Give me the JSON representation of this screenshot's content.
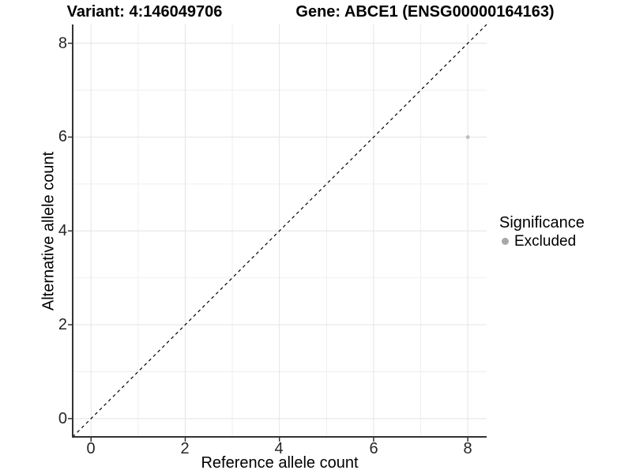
{
  "titles": {
    "variant_title": "Variant: 4:146049706",
    "gene_title": "Gene: ABCE1 (ENSG00000164163)"
  },
  "axes": {
    "x": {
      "label": "Reference allele count",
      "ticks": [
        "0",
        "2",
        "4",
        "6",
        "8"
      ]
    },
    "y": {
      "label": "Alternative allele count",
      "ticks": [
        "0",
        "2",
        "4",
        "6",
        "8"
      ]
    }
  },
  "legend": {
    "title": "Significance",
    "items": [
      {
        "label": "Excluded",
        "marker_color": "#a8a8a8"
      }
    ]
  },
  "chart_data": {
    "type": "scatter",
    "title": "Variant: 4:146049706 / Gene: ABCE1 (ENSG00000164163)",
    "xlabel": "Reference allele count",
    "ylabel": "Alternative allele count",
    "xlim": [
      -0.39,
      8.4
    ],
    "ylim": [
      -0.39,
      8.4
    ],
    "x_major_ticks": [
      0,
      2,
      4,
      6,
      8
    ],
    "x_minor_ticks": [
      1,
      3,
      5,
      7
    ],
    "y_major_ticks": [
      0,
      2,
      4,
      6,
      8
    ],
    "y_minor_ticks": [
      1,
      3,
      5,
      7
    ],
    "grid": "major and minor gridlines, light gray on white",
    "legend_position": "right",
    "series": [
      {
        "name": "Excluded",
        "marker": "circle",
        "color": "#bdbdbd",
        "points": [
          {
            "x": 8,
            "y": 6
          }
        ]
      }
    ],
    "reference_line": {
      "type": "identity",
      "slope": 1,
      "intercept": 0,
      "style": "dashed",
      "color": "#000000"
    }
  },
  "colors": {
    "background": "#ffffff",
    "grid_major": "#e4e4e4",
    "grid_minor": "#efefef",
    "axis_line": "#333333",
    "tick_mark": "#333333",
    "tick_text": "#262626",
    "point_excluded": "#bdbdbd",
    "legend_marker": "#a8a8a8"
  }
}
